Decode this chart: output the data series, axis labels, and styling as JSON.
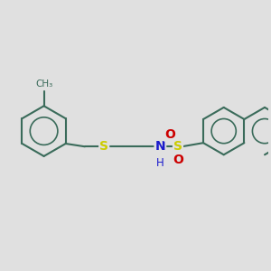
{
  "bg_color": "#e0e0e0",
  "bond_color": "#3a6b5a",
  "bond_lw": 1.5,
  "atom_colors": {
    "S": "#cccc00",
    "N": "#1a1acc",
    "O": "#cc0000"
  },
  "font_size": 9,
  "fig_size": [
    3.0,
    3.0
  ],
  "dpi": 100
}
